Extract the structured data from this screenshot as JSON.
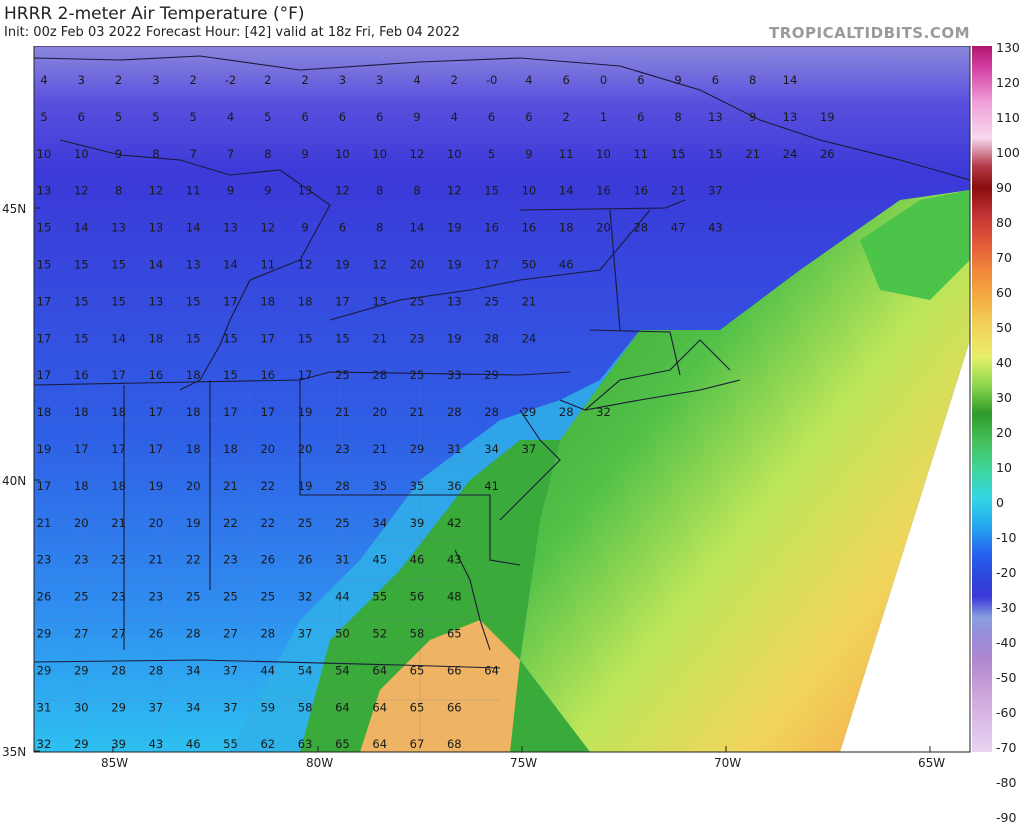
{
  "title": "HRRR 2-meter Air Temperature (°F)",
  "subtitle": "Init: 00z Feb 03 2022   Forecast Hour: [42]   valid at 18z Fri, Feb 04 2022",
  "watermark": "TROPICALTIDBITS.COM",
  "lat_labels": [
    "45N",
    "40N",
    "35N"
  ],
  "lon_labels": [
    "85W",
    "80W",
    "75W",
    "70W",
    "65W"
  ],
  "colorbar_ticks": [
    "130",
    "120",
    "110",
    "100",
    "90",
    "80",
    "70",
    "60",
    "50",
    "40",
    "30",
    "20",
    "10",
    "0",
    "-10",
    "-20",
    "-30",
    "-40",
    "-50",
    "-60",
    "-70",
    "-80",
    "-90"
  ],
  "colors": {
    "cold_deep": "#3b39d8",
    "cold": "#2f6be8",
    "cool": "#24a8f0",
    "mild": "#34d7e4",
    "warm_green": "#2f9a2a",
    "warm_yellow": "#e8ef6a",
    "warm_orange": "#f08a3a"
  },
  "temperature_points": [
    [
      "4",
      "3",
      "2",
      "3",
      "2",
      "-2",
      "2",
      "2",
      "3",
      "3",
      "4",
      "2",
      "-0",
      "4",
      "6",
      "0",
      "6",
      "9",
      "6",
      "8",
      "14"
    ],
    [
      "5",
      "6",
      "5",
      "5",
      "5",
      "4",
      "5",
      "6",
      "6",
      "6",
      "9",
      "4",
      "6",
      "6",
      "2",
      "1",
      "6",
      "8",
      "13",
      "9",
      "13",
      "19"
    ],
    [
      "10",
      "10",
      "9",
      "8",
      "7",
      "7",
      "8",
      "9",
      "10",
      "10",
      "12",
      "10",
      "5",
      "9",
      "11",
      "10",
      "11",
      "15",
      "15",
      "21",
      "24",
      "26"
    ],
    [
      "13",
      "12",
      "8",
      "12",
      "11",
      "9",
      "9",
      "13",
      "12",
      "8",
      "8",
      "12",
      "15",
      "10",
      "14",
      "16",
      "16",
      "21",
      "37"
    ],
    [
      "15",
      "14",
      "13",
      "13",
      "14",
      "13",
      "12",
      "9",
      "6",
      "8",
      "14",
      "19",
      "16",
      "16",
      "18",
      "20",
      "28",
      "47",
      "43"
    ],
    [
      "15",
      "15",
      "15",
      "14",
      "13",
      "14",
      "11",
      "12",
      "19",
      "12",
      "20",
      "19",
      "17",
      "50",
      "46"
    ],
    [
      "17",
      "15",
      "15",
      "13",
      "15",
      "17",
      "18",
      "18",
      "17",
      "15",
      "25",
      "13",
      "25",
      "21"
    ],
    [
      "17",
      "15",
      "14",
      "18",
      "15",
      "15",
      "17",
      "15",
      "15",
      "21",
      "23",
      "19",
      "28",
      "24"
    ],
    [
      "17",
      "16",
      "17",
      "16",
      "18",
      "15",
      "16",
      "17",
      "25",
      "28",
      "25",
      "33",
      "29"
    ],
    [
      "18",
      "18",
      "18",
      "17",
      "18",
      "17",
      "17",
      "19",
      "21",
      "20",
      "21",
      "28",
      "28",
      "29",
      "28",
      "32"
    ],
    [
      "19",
      "17",
      "17",
      "17",
      "18",
      "18",
      "20",
      "20",
      "23",
      "21",
      "29",
      "31",
      "34",
      "37"
    ],
    [
      "17",
      "18",
      "18",
      "19",
      "20",
      "21",
      "22",
      "19",
      "28",
      "35",
      "35",
      "36",
      "41"
    ],
    [
      "21",
      "20",
      "21",
      "20",
      "19",
      "22",
      "22",
      "25",
      "25",
      "34",
      "39",
      "42"
    ],
    [
      "23",
      "23",
      "23",
      "21",
      "22",
      "23",
      "26",
      "26",
      "31",
      "45",
      "46",
      "43"
    ],
    [
      "26",
      "25",
      "23",
      "23",
      "25",
      "25",
      "25",
      "32",
      "44",
      "55",
      "56",
      "48"
    ],
    [
      "29",
      "27",
      "27",
      "26",
      "28",
      "27",
      "28",
      "37",
      "50",
      "52",
      "58",
      "65"
    ],
    [
      "29",
      "29",
      "28",
      "28",
      "34",
      "37",
      "44",
      "54",
      "54",
      "64",
      "65",
      "66",
      "64"
    ],
    [
      "31",
      "30",
      "29",
      "37",
      "34",
      "37",
      "59",
      "58",
      "64",
      "64",
      "65",
      "66"
    ],
    [
      "32",
      "29",
      "39",
      "43",
      "46",
      "55",
      "62",
      "63",
      "65",
      "64",
      "67",
      "68"
    ]
  ]
}
